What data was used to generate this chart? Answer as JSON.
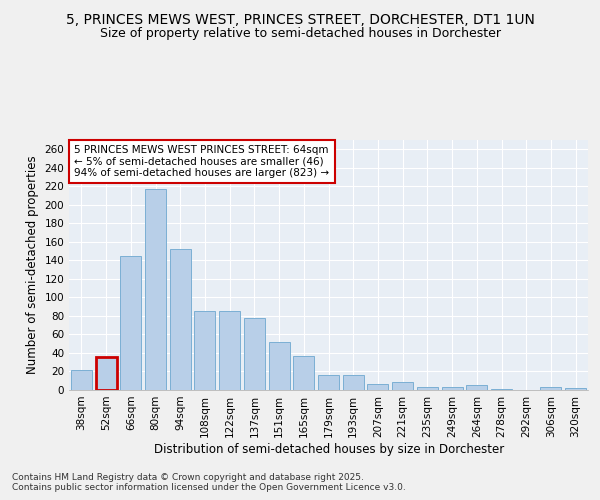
{
  "title": "5, PRINCES MEWS WEST, PRINCES STREET, DORCHESTER, DT1 1UN",
  "subtitle": "Size of property relative to semi-detached houses in Dorchester",
  "xlabel": "Distribution of semi-detached houses by size in Dorchester",
  "ylabel": "Number of semi-detached properties",
  "categories": [
    "38sqm",
    "52sqm",
    "66sqm",
    "80sqm",
    "94sqm",
    "108sqm",
    "122sqm",
    "137sqm",
    "151sqm",
    "165sqm",
    "179sqm",
    "193sqm",
    "207sqm",
    "221sqm",
    "235sqm",
    "249sqm",
    "264sqm",
    "278sqm",
    "292sqm",
    "306sqm",
    "320sqm"
  ],
  "values": [
    22,
    36,
    145,
    217,
    152,
    85,
    85,
    78,
    52,
    37,
    16,
    16,
    6,
    9,
    3,
    3,
    5,
    1,
    0,
    3,
    2
  ],
  "highlight_index": 1,
  "highlight_color": "#cc0000",
  "bar_color": "#b8cfe8",
  "bar_edge_color": "#7bafd4",
  "background_color": "#e8eef5",
  "ylim": [
    0,
    270
  ],
  "yticks": [
    0,
    20,
    40,
    60,
    80,
    100,
    120,
    140,
    160,
    180,
    200,
    220,
    240,
    260
  ],
  "annotation_line1": "5 PRINCES MEWS WEST PRINCES STREET: 64sqm",
  "annotation_line2": "← 5% of semi-detached houses are smaller (46)",
  "annotation_line3": "94% of semi-detached houses are larger (823) →",
  "footer_text": "Contains HM Land Registry data © Crown copyright and database right 2025.\nContains public sector information licensed under the Open Government Licence v3.0.",
  "grid_color": "#ffffff",
  "title_fontsize": 10,
  "subtitle_fontsize": 9,
  "axis_label_fontsize": 8.5,
  "tick_fontsize": 7.5,
  "annotation_fontsize": 7.5,
  "footer_fontsize": 6.5
}
